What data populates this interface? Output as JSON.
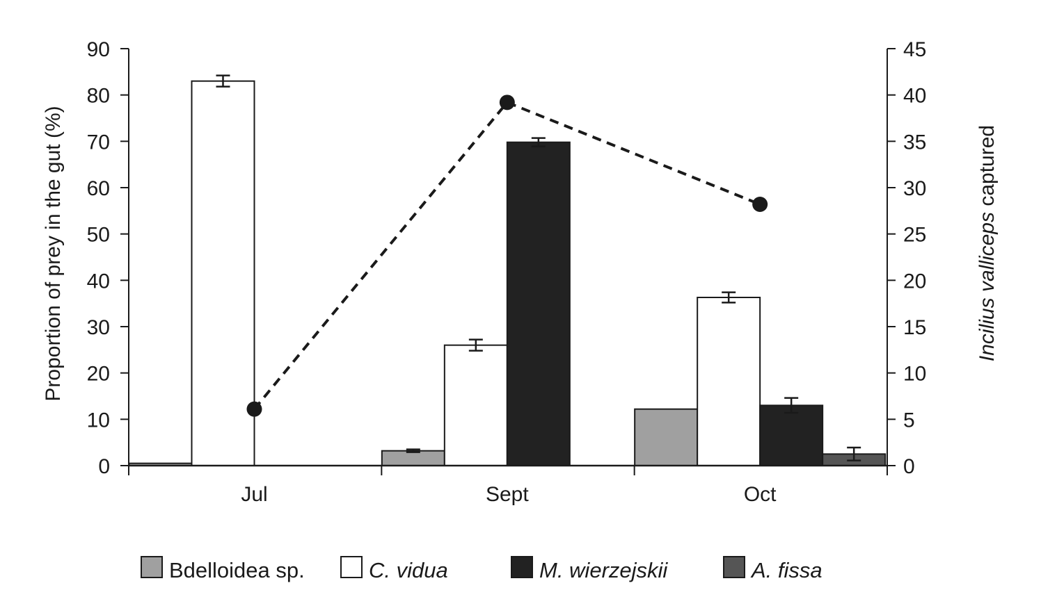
{
  "chart_data": {
    "type": "bar",
    "categories": [
      "Jul",
      "Sept",
      "Oct"
    ],
    "ylabel_left": "Proportion of prey in the gut (%)",
    "ylabel_right": {
      "italic": "Incilius valliceps",
      "plain": " captured"
    },
    "ylim_left": [
      0,
      90
    ],
    "yticks_left": [
      0,
      10,
      20,
      30,
      40,
      50,
      60,
      70,
      80,
      90
    ],
    "ylim_right": [
      0,
      45
    ],
    "yticks_right": [
      0,
      5,
      10,
      15,
      20,
      25,
      30,
      35,
      40,
      45
    ],
    "series": [
      {
        "name": "Bdelloidea sp.",
        "italic_name": false,
        "color": "#a0a0a0",
        "values": [
          0.5,
          3.2,
          12.2
        ],
        "errors": [
          null,
          0.3,
          null
        ]
      },
      {
        "name": "C. vidua",
        "italic_name": true,
        "color": "#ffffff",
        "values": [
          83.0,
          26.0,
          36.3
        ],
        "errors": [
          1.2,
          1.2,
          1.1
        ]
      },
      {
        "name": "M. wierzejskii",
        "italic_name": true,
        "color": "#222222",
        "values": [
          0,
          69.8,
          13.0
        ],
        "errors": [
          null,
          0.9,
          1.6
        ]
      },
      {
        "name": "A. fissa",
        "italic_name": true,
        "color": "#555555",
        "values": [
          0,
          0,
          2.5
        ],
        "errors": [
          null,
          null,
          1.4
        ]
      }
    ],
    "line_series": {
      "axis": "right",
      "style": "dashed",
      "color": "#1a1a1a",
      "values": [
        6.1,
        39.2,
        28.2
      ]
    },
    "legend_position": "bottom",
    "grid": false
  }
}
